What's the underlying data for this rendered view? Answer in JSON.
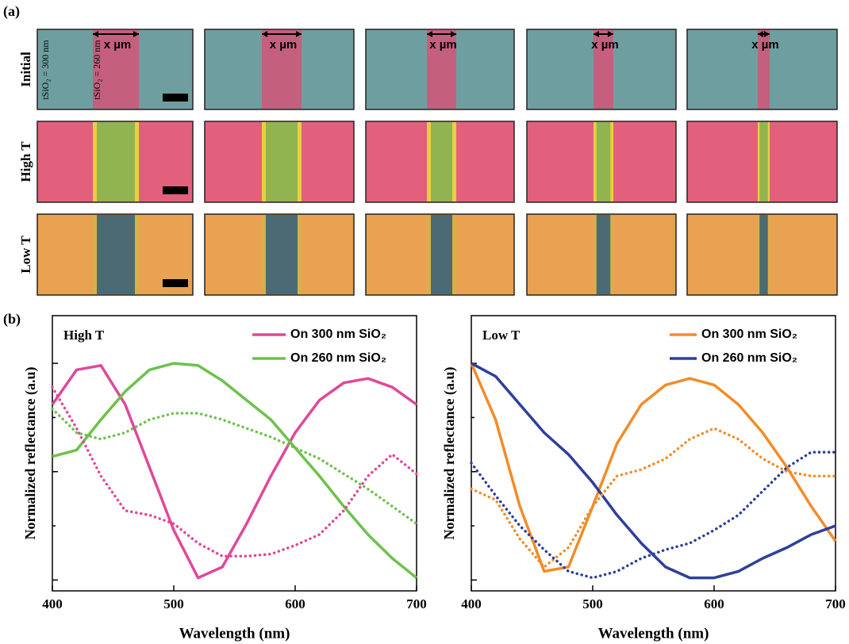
{
  "figure": {
    "panel_a": {
      "label": "(a)",
      "row_labels": [
        "Initial",
        "High T",
        "Low T"
      ],
      "column_labels": [
        "x µm",
        "x µm",
        "x µm",
        "x µm",
        "x µm"
      ],
      "thickness_labels": [
        "tSiO₂ = 300 nm",
        "tSiO₂ = 260 nm"
      ]
    },
    "panel_b": {
      "label": "(b)"
    }
  },
  "chart_data": [
    {
      "type": "line",
      "annotation": "High T",
      "xlabel": "Wavelength (nm)",
      "ylabel": "Normalized reflectance (a.u)",
      "x": [
        400,
        420,
        440,
        460,
        480,
        500,
        520,
        540,
        560,
        580,
        600,
        620,
        640,
        660,
        680,
        700
      ],
      "xlim": [
        400,
        700
      ],
      "xticks": [
        400,
        500,
        600,
        700
      ],
      "ylim": [
        -0.05,
        1.22
      ],
      "yticks": [
        0,
        0.25,
        0.5,
        0.75,
        1
      ],
      "series": [
        {
          "name": "On 300 nm SiO₂",
          "color": "#e0489a",
          "style": "solid",
          "values": [
            0.81,
            0.97,
            0.99,
            0.81,
            0.52,
            0.23,
            0.01,
            0.06,
            0.26,
            0.48,
            0.68,
            0.83,
            0.91,
            0.93,
            0.89,
            0.81
          ]
        },
        {
          "name": "On 260 nm SiO₂",
          "color": "#6cc24a",
          "style": "solid",
          "values": [
            0.57,
            0.6,
            0.74,
            0.87,
            0.97,
            1.0,
            0.99,
            0.92,
            0.83,
            0.74,
            0.61,
            0.48,
            0.34,
            0.21,
            0.1,
            0.01
          ]
        },
        {
          "color": "#e0489a",
          "style": "dotted",
          "values": [
            0.89,
            0.7,
            0.48,
            0.32,
            0.3,
            0.26,
            0.17,
            0.11,
            0.11,
            0.12,
            0.16,
            0.21,
            0.32,
            0.48,
            0.58,
            0.49
          ]
        },
        {
          "color": "#6cc24a",
          "style": "dotted",
          "values": [
            0.79,
            0.68,
            0.65,
            0.68,
            0.74,
            0.77,
            0.77,
            0.74,
            0.7,
            0.66,
            0.61,
            0.56,
            0.49,
            0.42,
            0.34,
            0.26
          ]
        }
      ]
    },
    {
      "type": "line",
      "annotation": "Low T",
      "xlabel": "Wavelength (nm)",
      "ylabel": "Normalized reflectance (a.u)",
      "x": [
        400,
        420,
        440,
        460,
        480,
        500,
        520,
        540,
        560,
        580,
        600,
        620,
        640,
        660,
        680,
        700
      ],
      "xlim": [
        400,
        700
      ],
      "xticks": [
        400,
        500,
        600,
        700
      ],
      "ylim": [
        -0.05,
        1.22
      ],
      "yticks": [
        0,
        0.25,
        0.5,
        0.75,
        1
      ],
      "series": [
        {
          "name": "On 300 nm SiO₂",
          "color": "#f28c28",
          "style": "solid",
          "values": [
            1.0,
            0.74,
            0.34,
            0.04,
            0.06,
            0.34,
            0.63,
            0.81,
            0.9,
            0.93,
            0.9,
            0.81,
            0.68,
            0.52,
            0.34,
            0.18
          ]
        },
        {
          "name": "On 260 nm SiO₂",
          "color": "#2e3f9a",
          "style": "solid",
          "values": [
            1.0,
            0.94,
            0.81,
            0.68,
            0.58,
            0.45,
            0.3,
            0.17,
            0.06,
            0.01,
            0.01,
            0.04,
            0.1,
            0.15,
            0.21,
            0.25
          ]
        },
        {
          "color": "#f28c28",
          "style": "dotted",
          "values": [
            0.42,
            0.37,
            0.19,
            0.06,
            0.15,
            0.34,
            0.48,
            0.51,
            0.56,
            0.65,
            0.7,
            0.65,
            0.56,
            0.5,
            0.48,
            0.48
          ]
        },
        {
          "color": "#2e3f9a",
          "style": "dotted",
          "values": [
            0.54,
            0.39,
            0.25,
            0.14,
            0.04,
            0.01,
            0.04,
            0.1,
            0.14,
            0.17,
            0.23,
            0.3,
            0.41,
            0.52,
            0.59,
            0.59
          ]
        }
      ]
    }
  ]
}
